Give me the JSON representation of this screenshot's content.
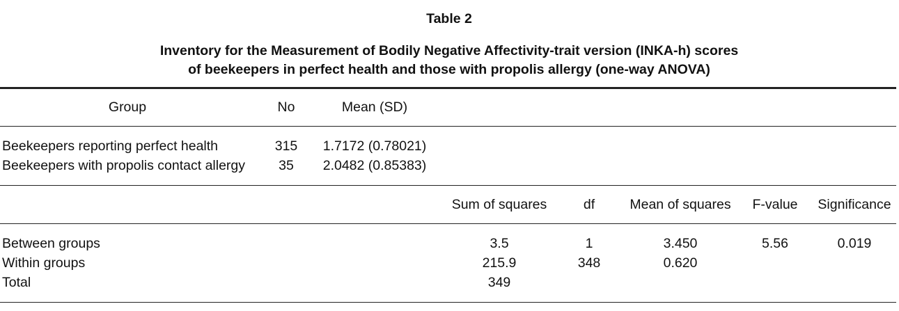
{
  "title": "Table 2",
  "caption": [
    "Inventory for the Measurement of Bodily Negative Affectivity-trait version (INKA-h) scores",
    "of beekeepers in perfect health and those with propolis allergy (one-way ANOVA)"
  ],
  "table1": {
    "header": [
      "Group",
      "No",
      "Mean (SD)"
    ],
    "rows": [
      [
        "Beekeepers reporting perfect health",
        "315",
        "1.7172 (0.78021)"
      ],
      [
        "Beekeepers with propolis contact allergy",
        "35",
        "2.0482 (0.85383)"
      ]
    ]
  },
  "table2": {
    "header": [
      "Sum of squares",
      "df",
      "Mean of squares",
      "F-value",
      "Significance"
    ],
    "rows": [
      [
        "Between groups",
        "3.5",
        "1",
        "3.450",
        "5.56",
        "0.019"
      ],
      [
        "Within groups",
        "215.9",
        "348",
        "0.620"
      ],
      [
        "Total",
        "349"
      ]
    ]
  }
}
